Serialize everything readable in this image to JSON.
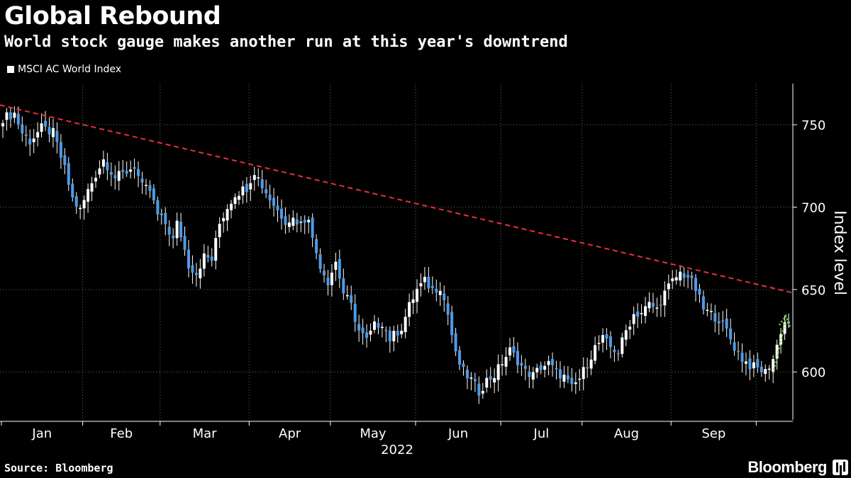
{
  "header": {
    "title": "Global Rebound",
    "subtitle": "World stock gauge makes another run at this year's downtrend"
  },
  "legend": {
    "label": "MSCI AC World Index"
  },
  "footer": {
    "source": "Source: Bloomberg",
    "brand": "Bloomberg"
  },
  "colors": {
    "background": "#000000",
    "up_candle": "#ffffff",
    "down_candle": "#4d9be8",
    "trend_line": "#e8303f",
    "arrow": "#7fd13b",
    "grid": "#666666"
  },
  "chart_data": {
    "type": "candlestick",
    "title": "Global Rebound",
    "ylabel": "Index level",
    "xlabel": "2022",
    "ylim": [
      570,
      775
    ],
    "y_ticks": [
      600,
      650,
      700,
      750
    ],
    "x_ticks": [
      "Jan",
      "Feb",
      "Mar",
      "Apr",
      "May",
      "Jun",
      "Jul",
      "Aug",
      "Sep"
    ],
    "grid": "dotted",
    "legend_position": "top-left",
    "series": [
      {
        "name": "MSCI AC World Index",
        "close_points": [
          [
            0,
            754
          ],
          [
            3,
            757
          ],
          [
            5,
            745
          ],
          [
            7,
            740
          ],
          [
            10,
            748
          ],
          [
            13,
            745
          ],
          [
            16,
            723
          ],
          [
            18,
            705
          ],
          [
            20,
            698
          ],
          [
            22,
            710
          ],
          [
            24,
            720
          ],
          [
            26,
            729
          ],
          [
            29,
            718
          ],
          [
            31,
            720
          ],
          [
            34,
            725
          ],
          [
            36,
            712
          ],
          [
            38,
            710
          ],
          [
            40,
            695
          ],
          [
            42,
            690
          ],
          [
            44,
            680
          ],
          [
            45,
            690
          ],
          [
            46,
            683
          ],
          [
            48,
            665
          ],
          [
            50,
            660
          ],
          [
            52,
            670
          ],
          [
            54,
            668
          ],
          [
            56,
            690
          ],
          [
            58,
            700
          ],
          [
            60,
            708
          ],
          [
            63,
            712
          ],
          [
            65,
            722
          ],
          [
            67,
            713
          ],
          [
            69,
            705
          ],
          [
            71,
            698
          ],
          [
            73,
            692
          ],
          [
            75,
            693
          ],
          [
            77,
            690
          ],
          [
            79,
            695
          ],
          [
            80,
            680
          ],
          [
            82,
            665
          ],
          [
            84,
            655
          ],
          [
            86,
            667
          ],
          [
            88,
            648
          ],
          [
            90,
            640
          ],
          [
            92,
            625
          ],
          [
            94,
            619
          ],
          [
            96,
            628
          ],
          [
            98,
            630
          ],
          [
            100,
            620
          ],
          [
            103,
            627
          ],
          [
            105,
            640
          ],
          [
            107,
            650
          ],
          [
            109,
            655
          ],
          [
            111,
            650
          ],
          [
            113,
            652
          ],
          [
            115,
            635
          ],
          [
            117,
            610
          ],
          [
            119,
            600
          ],
          [
            121,
            595
          ],
          [
            123,
            588
          ],
          [
            125,
            595
          ],
          [
            127,
            598
          ],
          [
            129,
            606
          ],
          [
            131,
            613
          ],
          [
            133,
            607
          ],
          [
            135,
            600
          ],
          [
            137,
            598
          ],
          [
            139,
            603
          ],
          [
            141,
            605
          ],
          [
            143,
            600
          ],
          [
            145,
            597
          ],
          [
            147,
            590
          ],
          [
            149,
            596
          ],
          [
            151,
            605
          ],
          [
            153,
            615
          ],
          [
            155,
            620
          ],
          [
            157,
            615
          ],
          [
            159,
            612
          ],
          [
            161,
            625
          ],
          [
            163,
            635
          ],
          [
            165,
            636
          ],
          [
            167,
            641
          ],
          [
            169,
            638
          ],
          [
            171,
            648
          ],
          [
            173,
            655
          ],
          [
            175,
            660
          ],
          [
            177,
            658
          ],
          [
            179,
            650
          ],
          [
            181,
            638
          ],
          [
            183,
            635
          ],
          [
            185,
            632
          ],
          [
            187,
            625
          ],
          [
            189,
            615
          ],
          [
            191,
            608
          ],
          [
            193,
            604
          ],
          [
            195,
            602
          ],
          [
            197,
            600
          ],
          [
            199,
            608
          ],
          [
            200,
            616
          ],
          [
            201,
            625
          ],
          [
            202,
            630
          ]
        ]
      }
    ],
    "trend_line": {
      "from": [
        0,
        762
      ],
      "to": [
        203,
        648
      ]
    }
  }
}
